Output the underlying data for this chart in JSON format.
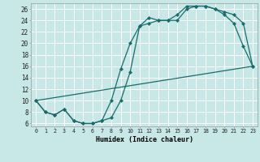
{
  "xlabel": "Humidex (Indice chaleur)",
  "background_color": "#c8e8e8",
  "grid_color": "#ffffff",
  "line_color": "#1a6b6b",
  "xlim": [
    -0.5,
    23.5
  ],
  "ylim": [
    5.5,
    27.0
  ],
  "xtick_vals": [
    0,
    1,
    2,
    3,
    4,
    5,
    6,
    7,
    8,
    9,
    10,
    11,
    12,
    13,
    14,
    15,
    16,
    17,
    18,
    19,
    20,
    21,
    22,
    23
  ],
  "xtick_labels": [
    "0",
    "1",
    "2",
    "3",
    "4",
    "5",
    "6",
    "7",
    "8",
    "9",
    "10",
    "11",
    "12",
    "13",
    "14",
    "15",
    "16",
    "17",
    "18",
    "19",
    "20",
    "21",
    "22",
    "23"
  ],
  "ytick_vals": [
    6,
    8,
    10,
    12,
    14,
    16,
    18,
    20,
    22,
    24,
    26
  ],
  "ytick_labels": [
    "6",
    "8",
    "10",
    "12",
    "14",
    "16",
    "18",
    "20",
    "22",
    "24",
    "26"
  ],
  "line1_x": [
    0,
    1,
    2,
    3,
    4,
    5,
    6,
    7,
    8,
    9,
    10,
    11,
    12,
    13,
    14,
    15,
    16,
    17,
    18,
    19,
    20,
    21,
    22,
    23
  ],
  "line1_y": [
    10,
    8,
    7.5,
    8.5,
    6.5,
    6,
    6,
    6.5,
    7,
    10,
    15,
    23,
    23.5,
    24,
    24,
    24,
    26,
    26.5,
    26.5,
    26,
    25,
    23.5,
    19.5,
    16
  ],
  "line2_x": [
    0,
    1,
    2,
    3,
    4,
    5,
    6,
    7,
    8,
    9,
    10,
    11,
    12,
    13,
    14,
    15,
    16,
    17,
    18,
    19,
    20,
    21,
    22,
    23
  ],
  "line2_y": [
    10,
    8,
    7.5,
    8.5,
    6.5,
    6,
    6,
    6.5,
    10,
    15.5,
    20,
    23,
    24.5,
    24,
    24,
    25,
    26.5,
    26.5,
    26.5,
    26,
    25.5,
    25,
    23.5,
    16
  ],
  "line3_x": [
    0,
    23
  ],
  "line3_y": [
    10,
    16
  ]
}
